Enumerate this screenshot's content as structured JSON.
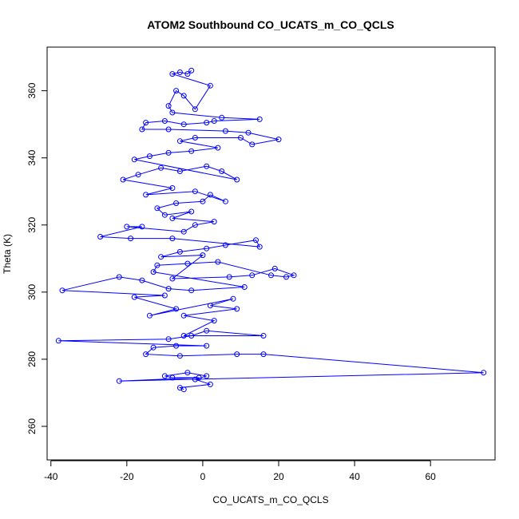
{
  "chart_data": {
    "type": "scatter",
    "title": "ATOM2 Southbound CO_UCATS_m_CO_QCLS",
    "xlabel": "CO_UCATS_m_CO_QCLS",
    "ylabel": "Theta (K)",
    "xlim": [
      -41,
      77
    ],
    "ylim": [
      250,
      373
    ],
    "xticks": [
      -40,
      -20,
      0,
      20,
      40,
      60
    ],
    "yticks": [
      260,
      280,
      300,
      320,
      340,
      360
    ],
    "xtick_labels": [
      "-40",
      "-20",
      "0",
      "20",
      "40",
      "60"
    ],
    "ytick_labels": [
      "260",
      "280",
      "300",
      "320",
      "340",
      "360"
    ],
    "grid": false,
    "series": [
      {
        "name": "CO_UCATS_m_CO_QCLS",
        "style": "points-and-lines",
        "color": "#0000ff",
        "points": [
          [
            -5,
            271
          ],
          [
            -6,
            271.5
          ],
          [
            2,
            272.5
          ],
          [
            -2,
            274
          ],
          [
            1,
            275
          ],
          [
            -4,
            276
          ],
          [
            -10,
            275
          ],
          [
            -8,
            274.5
          ],
          [
            -1,
            274.5
          ],
          [
            -22,
            273.5
          ],
          [
            74,
            276
          ],
          [
            16,
            281.5
          ],
          [
            9,
            281.5
          ],
          [
            -6,
            281
          ],
          [
            -15,
            281.5
          ],
          [
            -13,
            283.5
          ],
          [
            -7,
            284
          ],
          [
            1,
            284
          ],
          [
            -38,
            285.5
          ],
          [
            -9,
            286
          ],
          [
            -3,
            287
          ],
          [
            1,
            288.5
          ],
          [
            16,
            287
          ],
          [
            -5,
            287
          ],
          [
            3,
            291.5
          ],
          [
            -5,
            293
          ],
          [
            9,
            295
          ],
          [
            2,
            296
          ],
          [
            8,
            298
          ],
          [
            -14,
            293
          ],
          [
            -7,
            295
          ],
          [
            -18,
            298.5
          ],
          [
            -10,
            299
          ],
          [
            -37,
            300.5
          ],
          [
            -22,
            304.5
          ],
          [
            -16,
            303.5
          ],
          [
            -9,
            301
          ],
          [
            -3,
            300.5
          ],
          [
            11,
            301.5
          ],
          [
            -13,
            306
          ],
          [
            -12,
            308
          ],
          [
            -4,
            308.5
          ],
          [
            4,
            309
          ],
          [
            18,
            305
          ],
          [
            22,
            304.5
          ],
          [
            24,
            305
          ],
          [
            19,
            307
          ],
          [
            13,
            305
          ],
          [
            7,
            304.5
          ],
          [
            -8,
            304
          ],
          [
            0,
            311
          ],
          [
            -11,
            310.5
          ],
          [
            -6,
            312
          ],
          [
            1,
            313
          ],
          [
            6,
            314
          ],
          [
            14,
            315.5
          ],
          [
            15,
            313.5
          ],
          [
            -8,
            316
          ],
          [
            -19,
            316
          ],
          [
            -27,
            316.5
          ],
          [
            -16,
            319.5
          ],
          [
            -20,
            319.5
          ],
          [
            -5,
            318
          ],
          [
            -2,
            320
          ],
          [
            3,
            321
          ],
          [
            -8,
            322
          ],
          [
            -3,
            324
          ],
          [
            -10,
            323
          ],
          [
            -12,
            325
          ],
          [
            -7,
            326.5
          ],
          [
            0,
            327
          ],
          [
            2,
            329
          ],
          [
            6,
            327
          ],
          [
            -2,
            330
          ],
          [
            -15,
            329
          ],
          [
            -8,
            331
          ],
          [
            -21,
            333.5
          ],
          [
            -17,
            335
          ],
          [
            -11,
            337
          ],
          [
            -6,
            336
          ],
          [
            1,
            337.5
          ],
          [
            5,
            336
          ],
          [
            9,
            333.5
          ],
          [
            -18,
            339.5
          ],
          [
            -14,
            340.5
          ],
          [
            -9,
            341.5
          ],
          [
            -3,
            342
          ],
          [
            4,
            343
          ],
          [
            -6,
            345
          ],
          [
            -2,
            346
          ],
          [
            10,
            346
          ],
          [
            13,
            344
          ],
          [
            20,
            345.5
          ],
          [
            12,
            347.5
          ],
          [
            6,
            348
          ],
          [
            -9,
            348.5
          ],
          [
            -16,
            348.5
          ],
          [
            -15,
            350.5
          ],
          [
            -10,
            351
          ],
          [
            -5,
            350
          ],
          [
            1,
            350.5
          ],
          [
            3,
            351
          ],
          [
            15,
            351.5
          ],
          [
            5,
            352
          ],
          [
            -8,
            353.5
          ],
          [
            -9,
            355.5
          ],
          [
            -7,
            360
          ],
          [
            -5,
            358.5
          ],
          [
            -2,
            354.5
          ],
          [
            2,
            361.5
          ],
          [
            -8,
            365
          ],
          [
            -6,
            365.5
          ],
          [
            -4,
            365
          ],
          [
            -3,
            366
          ]
        ]
      }
    ]
  }
}
